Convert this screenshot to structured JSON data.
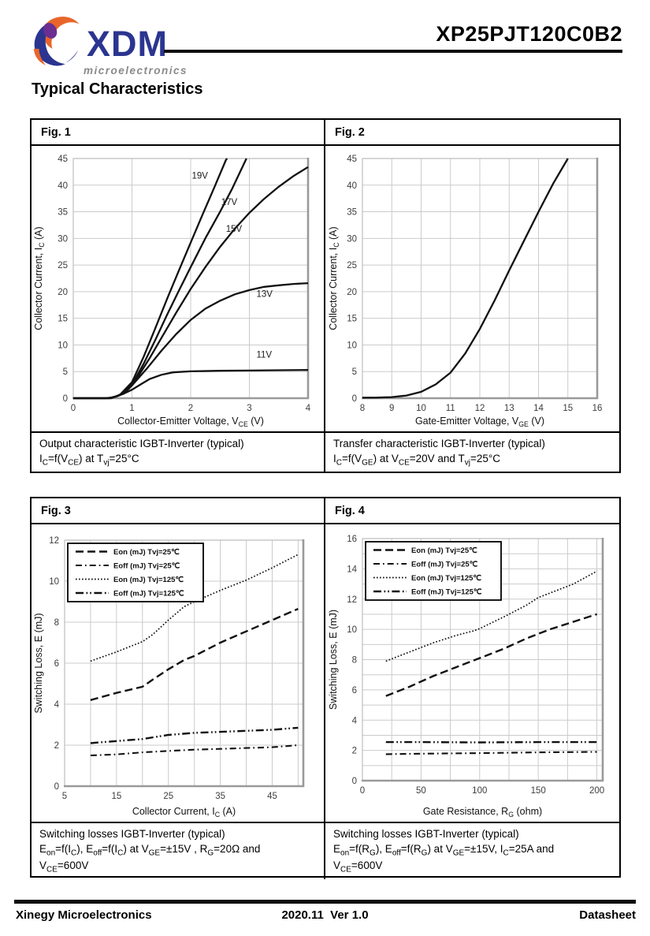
{
  "header": {
    "brand": "XDM",
    "brand_tagline": "microelectronics",
    "part_number": "XP25PJT120C0B2"
  },
  "page_title": "Typical Characteristics",
  "colors": {
    "brand_navy": "#2B3590",
    "brand_orange": "#E8662B",
    "brand_purple": "#6B2E91",
    "grid": "#cbcbcb",
    "frame_thick": "#9a9a9a",
    "frame_thin": "#bdbdbd",
    "curve": "#111111",
    "tick_text": "#3d3d3d"
  },
  "figures": [
    {
      "label": "Fig. 1",
      "caption_lines": [
        "Output characteristic IGBT-Inverter (typical)",
        "I_{C}=f(V_{CE}) at T_{vj}=25°C"
      ]
    },
    {
      "label": "Fig. 2",
      "caption_lines": [
        "Transfer characteristic IGBT-Inverter (typical)",
        "I_{C}=f(V_{GE}) at V_{CE}=20V and T_{vj}=25°C"
      ]
    },
    {
      "label": "Fig. 3",
      "caption_lines": [
        "Switching losses IGBT-Inverter (typical)",
        "E_{on}=f(I_{C}), E_{off}=f(I_{C}) at V_{GE}=±15V , R_{G}=20Ω and",
        "V_{CE}=600V"
      ]
    },
    {
      "label": "Fig. 4",
      "caption_lines": [
        "Switching losses IGBT-Inverter (typical)",
        "E_{on}=f(R_{G}), E_{off}=f(R_{G}) at V_{GE}=±15V, I_{C}=25A and",
        "V_{CE}=600V"
      ]
    }
  ],
  "footer": {
    "company": "Xinegy Microelectronics",
    "version": "2020.11  Ver 1.0",
    "doc_type": "Datasheet"
  },
  "chart_data": [
    {
      "figure": "Fig. 1",
      "type": "line",
      "title": "Output characteristic IGBT-Inverter (typical)",
      "xlabel": "Collector-Emitter Voltage, V_{CE} (V)",
      "ylabel": "Collector Current, I_{C} (A)",
      "xlim": [
        0,
        4
      ],
      "ylim": [
        0,
        45
      ],
      "xticks": [
        0,
        1,
        2,
        3,
        4
      ],
      "yticks": [
        0,
        5,
        10,
        15,
        20,
        25,
        30,
        35,
        40,
        45
      ],
      "x_grid_step": 1,
      "y_grid_step": 5,
      "legend": null,
      "series": [
        {
          "name": "VGE=19V",
          "dash": "solid",
          "label": {
            "text": "19V",
            "x": 2.02,
            "y": 41.2
          },
          "points": [
            [
              0,
              0
            ],
            [
              0.65,
              0
            ],
            [
              0.8,
              0.7
            ],
            [
              1,
              3
            ],
            [
              1.2,
              7.8
            ],
            [
              1.4,
              13.2
            ],
            [
              1.6,
              18.7
            ],
            [
              1.8,
              24
            ],
            [
              2,
              29.2
            ],
            [
              2.2,
              34.4
            ],
            [
              2.4,
              39.5
            ],
            [
              2.6,
              44.7
            ],
            [
              2.62,
              45
            ]
          ]
        },
        {
          "name": "VGE=17V",
          "dash": "solid",
          "label": {
            "text": "17V",
            "x": 2.52,
            "y": 36.3
          },
          "points": [
            [
              0,
              0
            ],
            [
              0.63,
              0
            ],
            [
              0.8,
              0.6
            ],
            [
              1,
              2.5
            ],
            [
              1.2,
              6.5
            ],
            [
              1.4,
              11
            ],
            [
              1.6,
              15.7
            ],
            [
              1.8,
              20.2
            ],
            [
              2,
              24.6
            ],
            [
              2.25,
              30
            ],
            [
              2.5,
              35
            ],
            [
              2.7,
              39.2
            ],
            [
              2.95,
              45
            ]
          ]
        },
        {
          "name": "VGE=15V",
          "dash": "solid",
          "label": {
            "text": "15V",
            "x": 2.6,
            "y": 31.2
          },
          "points": [
            [
              0,
              0
            ],
            [
              0.62,
              0
            ],
            [
              0.78,
              0.5
            ],
            [
              0.95,
              1.8
            ],
            [
              1.1,
              4
            ],
            [
              1.3,
              7.5
            ],
            [
              1.5,
              11.3
            ],
            [
              1.75,
              16
            ],
            [
              2,
              20.5
            ],
            [
              2.25,
              24.6
            ],
            [
              2.5,
              28.4
            ],
            [
              2.75,
              31.8
            ],
            [
              3,
              34.8
            ],
            [
              3.25,
              37.4
            ],
            [
              3.5,
              39.7
            ],
            [
              3.75,
              41.7
            ],
            [
              4,
              43.4
            ]
          ]
        },
        {
          "name": "VGE=13V",
          "dash": "solid",
          "label": {
            "text": "13V",
            "x": 3.12,
            "y": 19
          },
          "points": [
            [
              0,
              0
            ],
            [
              0.6,
              0
            ],
            [
              0.75,
              0.4
            ],
            [
              0.9,
              1.3
            ],
            [
              1,
              2.4
            ],
            [
              1.25,
              5.5
            ],
            [
              1.5,
              8.9
            ],
            [
              1.75,
              12
            ],
            [
              2,
              14.7
            ],
            [
              2.25,
              16.8
            ],
            [
              2.5,
              18.3
            ],
            [
              2.75,
              19.5
            ],
            [
              3,
              20.3
            ],
            [
              3.25,
              20.9
            ],
            [
              3.5,
              21.2
            ],
            [
              3.75,
              21.45
            ],
            [
              4,
              21.6
            ]
          ]
        },
        {
          "name": "VGE=11V",
          "dash": "solid",
          "label": {
            "text": "11V",
            "x": 3.12,
            "y": 7.6
          },
          "points": [
            [
              0,
              0
            ],
            [
              0.55,
              0
            ],
            [
              0.7,
              0.2
            ],
            [
              0.85,
              0.8
            ],
            [
              1,
              1.6
            ],
            [
              1.15,
              2.6
            ],
            [
              1.3,
              3.6
            ],
            [
              1.5,
              4.4
            ],
            [
              1.7,
              4.85
            ],
            [
              2,
              5.05
            ],
            [
              2.5,
              5.15
            ],
            [
              3,
              5.2
            ],
            [
              3.5,
              5.25
            ],
            [
              4,
              5.3
            ]
          ]
        }
      ]
    },
    {
      "figure": "Fig. 2",
      "type": "line",
      "title": "Transfer characteristic IGBT-Inverter (typical)",
      "xlabel": "Gate-Emitter Voltage, V_{GE} (V)",
      "ylabel": "Collector Current, I_{C} (A)",
      "xlim": [
        8,
        16
      ],
      "ylim": [
        0,
        45
      ],
      "xticks": [
        8,
        9,
        10,
        11,
        12,
        13,
        14,
        15,
        16
      ],
      "yticks": [
        0,
        5,
        10,
        15,
        20,
        25,
        30,
        35,
        40,
        45
      ],
      "x_grid_step": 1,
      "y_grid_step": 5,
      "legend": null,
      "series": [
        {
          "name": "IC",
          "dash": "solid",
          "points": [
            [
              8,
              0.1
            ],
            [
              8.5,
              0.12
            ],
            [
              9,
              0.2
            ],
            [
              9.5,
              0.5
            ],
            [
              10,
              1.2
            ],
            [
              10.5,
              2.6
            ],
            [
              11,
              4.8
            ],
            [
              11.5,
              8.4
            ],
            [
              12,
              13
            ],
            [
              12.5,
              18.3
            ],
            [
              13,
              24
            ],
            [
              13.5,
              29.5
            ],
            [
              14,
              35
            ],
            [
              14.5,
              40.3
            ],
            [
              15,
              45
            ]
          ]
        }
      ]
    },
    {
      "figure": "Fig. 3",
      "type": "line",
      "title": "Switching losses IGBT-Inverter (typical)",
      "xlabel": "Collector Current, I_{C} (A)",
      "ylabel": "Switching Loss, E (mJ)",
      "xlim": [
        5,
        51
      ],
      "ylim": [
        0,
        12
      ],
      "xticks": [
        5,
        15,
        25,
        35,
        45
      ],
      "yticks": [
        0,
        2,
        4,
        6,
        8,
        10,
        12
      ],
      "x_grid_step": 5,
      "y_grid_step": 2,
      "legend": "top-left",
      "series": [
        {
          "name": "Eon (mJ) Tvj=25℃",
          "dash": "dash",
          "points": [
            [
              10,
              4.2
            ],
            [
              15,
              4.55
            ],
            [
              20,
              4.85
            ],
            [
              22,
              5.2
            ],
            [
              25,
              5.7
            ],
            [
              28,
              6.15
            ],
            [
              30,
              6.35
            ],
            [
              35,
              7.0
            ],
            [
              40,
              7.55
            ],
            [
              45,
              8.1
            ],
            [
              50,
              8.65
            ]
          ]
        },
        {
          "name": "Eoff (mJ) Tvj=25℃",
          "dash": "dashdot",
          "points": [
            [
              10,
              1.5
            ],
            [
              15,
              1.55
            ],
            [
              20,
              1.65
            ],
            [
              25,
              1.72
            ],
            [
              30,
              1.78
            ],
            [
              35,
              1.82
            ],
            [
              40,
              1.86
            ],
            [
              45,
              1.9
            ],
            [
              50,
              2.0
            ]
          ]
        },
        {
          "name": "Eon (mJ) Tvj=125℃",
          "dash": "dot",
          "points": [
            [
              10,
              6.1
            ],
            [
              15,
              6.55
            ],
            [
              20,
              7.05
            ],
            [
              22,
              7.4
            ],
            [
              25,
              8.1
            ],
            [
              28,
              8.75
            ],
            [
              30,
              9.0
            ],
            [
              35,
              9.55
            ],
            [
              40,
              10.05
            ],
            [
              45,
              10.65
            ],
            [
              50,
              11.3
            ]
          ]
        },
        {
          "name": "Eoff (mJ) Tvj=125℃",
          "dash": "dashdotdot",
          "points": [
            [
              10,
              2.1
            ],
            [
              15,
              2.2
            ],
            [
              20,
              2.3
            ],
            [
              25,
              2.5
            ],
            [
              30,
              2.6
            ],
            [
              35,
              2.65
            ],
            [
              40,
              2.7
            ],
            [
              45,
              2.75
            ],
            [
              50,
              2.85
            ]
          ]
        }
      ]
    },
    {
      "figure": "Fig. 4",
      "type": "line",
      "title": "Switching losses IGBT-Inverter (typical)",
      "xlabel": "Gate Resistance, R_{G} (ohm)",
      "ylabel": "Switching Loss, E (mJ)",
      "xlim": [
        0,
        205
      ],
      "ylim": [
        0,
        16
      ],
      "xticks": [
        0,
        50,
        100,
        150,
        200
      ],
      "yticks": [
        0,
        2,
        4,
        6,
        8,
        10,
        12,
        14,
        16
      ],
      "x_grid_step": 25,
      "y_grid_step": 1,
      "legend": "top-left",
      "series": [
        {
          "name": "Eon (mJ) Tvj=25℃",
          "dash": "dash",
          "points": [
            [
              20,
              5.6
            ],
            [
              40,
              6.2
            ],
            [
              60,
              6.9
            ],
            [
              80,
              7.5
            ],
            [
              100,
              8.1
            ],
            [
              120,
              8.7
            ],
            [
              140,
              9.4
            ],
            [
              160,
              10.0
            ],
            [
              180,
              10.5
            ],
            [
              200,
              11.0
            ]
          ]
        },
        {
          "name": "Eoff (mJ) Tvj=25℃",
          "dash": "dashdot",
          "points": [
            [
              20,
              1.75
            ],
            [
              50,
              1.78
            ],
            [
              100,
              1.82
            ],
            [
              150,
              1.87
            ],
            [
              200,
              1.9
            ]
          ]
        },
        {
          "name": "Eon (mJ) Tvj=125℃",
          "dash": "dot",
          "points": [
            [
              20,
              7.9
            ],
            [
              40,
              8.5
            ],
            [
              60,
              9.1
            ],
            [
              80,
              9.6
            ],
            [
              95,
              9.9
            ],
            [
              100,
              10.05
            ],
            [
              120,
              10.8
            ],
            [
              140,
              11.6
            ],
            [
              150,
              12.1
            ],
            [
              160,
              12.4
            ],
            [
              180,
              13.0
            ],
            [
              200,
              13.85
            ]
          ]
        },
        {
          "name": "Eoff (mJ) Tvj=125℃",
          "dash": "dashdotdot",
          "points": [
            [
              20,
              2.55
            ],
            [
              50,
              2.55
            ],
            [
              100,
              2.53
            ],
            [
              150,
              2.55
            ],
            [
              200,
              2.55
            ]
          ]
        }
      ]
    }
  ]
}
